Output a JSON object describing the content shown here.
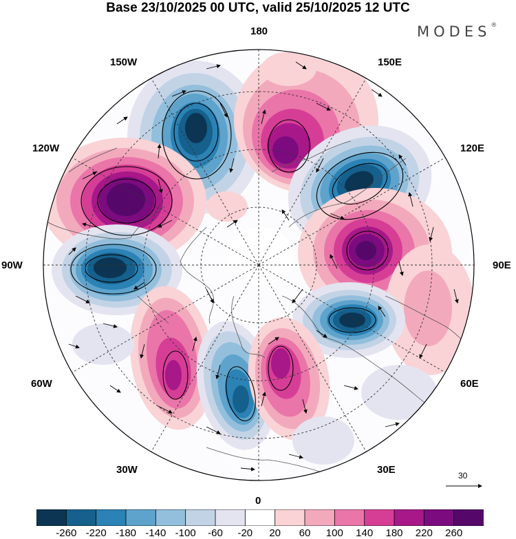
{
  "title": "Base 23/10/2025 00 UTC, valid 25/10/2025 12 UTC",
  "brand": "MODES",
  "brand_mark": "®",
  "longitude_labels": {
    "top": "180",
    "bottom": "0",
    "left": "90W",
    "right": "90E",
    "upper_left_outer": "150W",
    "upper_left_inner": "120W",
    "lower_left_inner": "60W",
    "lower_left_outer": "30W",
    "upper_right_outer": "150E",
    "upper_right_inner": "120E",
    "lower_right_inner": "60E",
    "lower_right_outer": "30E"
  },
  "reference_vector": {
    "value": "30"
  },
  "colorbar": {
    "ticks": [
      "-260",
      "-220",
      "-180",
      "-140",
      "-100",
      "-60",
      "-20",
      "20",
      "60",
      "100",
      "140",
      "180",
      "220",
      "260"
    ],
    "colors": [
      "#0b3552",
      "#15608c",
      "#2b82b5",
      "#5ea3cc",
      "#93bfdc",
      "#c3d3e6",
      "#e4e4f1",
      "#ffffff",
      "#f9d3d6",
      "#f3a9bc",
      "#ea75a9",
      "#d63e96",
      "#a81889",
      "#7b0b7e",
      "#55086a"
    ]
  },
  "anomaly_centers": [
    {
      "name": "low-pacific-north",
      "sign": "negative",
      "peak": -260
    },
    {
      "name": "low-east-siberia",
      "sign": "negative",
      "peak": -260
    },
    {
      "name": "low-west-siberia",
      "sign": "negative",
      "peak": -260
    },
    {
      "name": "low-north-atlantic",
      "sign": "negative",
      "peak": -220
    },
    {
      "name": "low-greenland",
      "sign": "negative",
      "peak": -260
    },
    {
      "name": "high-bering",
      "sign": "positive",
      "peak": 220
    },
    {
      "name": "high-canada",
      "sign": "positive",
      "peak": 260
    },
    {
      "name": "high-central-siberia",
      "sign": "positive",
      "peak": 260
    },
    {
      "name": "high-europe",
      "sign": "positive",
      "peak": 220
    },
    {
      "name": "high-atlantic",
      "sign": "positive",
      "peak": 180
    }
  ]
}
